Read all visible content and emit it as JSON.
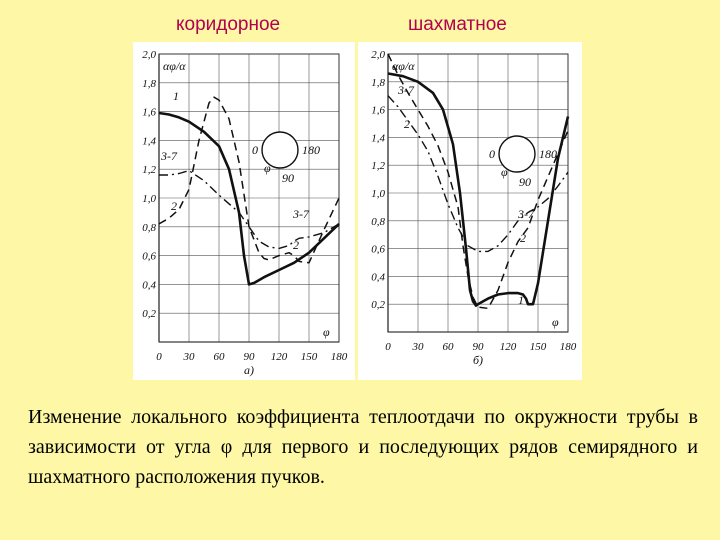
{
  "headings": {
    "left": "коридорное",
    "right": "шахматное"
  },
  "caption": "Изменение локального коэффициента теплоотдачи по окружности трубы в зависимости от угла φ для первого и последующих рядов семирядного и шахматного расположения пучков.",
  "colors": {
    "background": "#fdf7a6",
    "heading": "#b3004f",
    "panel": "#ffffff",
    "ink": "#111111"
  },
  "chart_data": [
    {
      "type": "line",
      "panel_label": "а)",
      "ylabel": "αφ/α",
      "xlabel": "φ",
      "xlim": [
        0,
        180
      ],
      "ylim": [
        0,
        2.0
      ],
      "x_ticks": [
        "0",
        "30",
        "60",
        "90",
        "120",
        "150",
        "180"
      ],
      "y_ticks": [
        "0,2",
        "0,4",
        "0,6",
        "0,8",
        "1,0",
        "1,2",
        "1,4",
        "1,6",
        "1,8",
        "2,0"
      ],
      "grid": true,
      "inset_labels": [
        "0",
        "180",
        "φ",
        "90"
      ],
      "series": [
        {
          "name": "1",
          "style": "solid",
          "x": [
            0,
            10,
            20,
            30,
            45,
            60,
            70,
            80,
            85,
            90,
            95,
            105,
            120,
            135,
            150,
            165,
            180
          ],
          "y": [
            1.59,
            1.58,
            1.56,
            1.53,
            1.46,
            1.36,
            1.2,
            0.9,
            0.6,
            0.4,
            0.41,
            0.45,
            0.5,
            0.55,
            0.62,
            0.72,
            0.82
          ]
        },
        {
          "name": "2",
          "style": "dashed",
          "x": [
            0,
            10,
            20,
            30,
            40,
            50,
            55,
            60,
            70,
            80,
            90,
            100,
            105,
            110,
            120,
            130,
            135,
            140,
            150,
            165,
            180
          ],
          "y": [
            0.82,
            0.86,
            0.92,
            1.06,
            1.4,
            1.66,
            1.7,
            1.68,
            1.55,
            1.25,
            0.8,
            0.62,
            0.58,
            0.57,
            0.6,
            0.62,
            0.6,
            0.56,
            0.55,
            0.78,
            1.0
          ]
        },
        {
          "name": "3-7",
          "style": "dashdot",
          "x": [
            0,
            10,
            20,
            30,
            45,
            60,
            70,
            80,
            90,
            100,
            110,
            120,
            130,
            135,
            140,
            150,
            165,
            180
          ],
          "y": [
            1.16,
            1.16,
            1.17,
            1.19,
            1.12,
            1.02,
            0.96,
            0.9,
            0.8,
            0.7,
            0.66,
            0.65,
            0.67,
            0.7,
            0.72,
            0.73,
            0.76,
            0.82
          ]
        }
      ]
    },
    {
      "type": "line",
      "panel_label": "б)",
      "ylabel": "αφ/α",
      "xlabel": "φ",
      "xlim": [
        0,
        180
      ],
      "ylim": [
        0,
        2.0
      ],
      "x_ticks": [
        "0",
        "30",
        "60",
        "90",
        "120",
        "150",
        "180"
      ],
      "y_ticks": [
        "0,2",
        "0,4",
        "0,6",
        "0,8",
        "1,0",
        "1,2",
        "1,4",
        "1,6",
        "1,8",
        "2,0"
      ],
      "grid": true,
      "inset_labels": [
        "0",
        "180",
        "φ",
        "90"
      ],
      "series": [
        {
          "name": "1",
          "style": "solid",
          "x": [
            0,
            15,
            30,
            45,
            55,
            65,
            72,
            78,
            82,
            85,
            88,
            90,
            95,
            100,
            110,
            120,
            130,
            135,
            138,
            140,
            145,
            150,
            160,
            170,
            180
          ],
          "y": [
            1.86,
            1.84,
            1.8,
            1.72,
            1.6,
            1.35,
            1.0,
            0.6,
            0.3,
            0.22,
            0.19,
            0.2,
            0.22,
            0.24,
            0.27,
            0.28,
            0.28,
            0.27,
            0.24,
            0.2,
            0.2,
            0.35,
            0.8,
            1.25,
            1.55
          ]
        },
        {
          "name": "2",
          "style": "dashed",
          "x": [
            0,
            10,
            20,
            30,
            40,
            50,
            60,
            70,
            75,
            80,
            85,
            90,
            100,
            110,
            120,
            130,
            135,
            140,
            150,
            165,
            180
          ],
          "y": [
            2.0,
            1.85,
            1.72,
            1.6,
            1.48,
            1.34,
            1.15,
            0.9,
            0.62,
            0.4,
            0.25,
            0.18,
            0.17,
            0.3,
            0.5,
            0.65,
            0.7,
            0.75,
            0.95,
            1.2,
            1.45
          ]
        },
        {
          "name": "3-7",
          "style": "dashdot",
          "x": [
            0,
            10,
            20,
            30,
            40,
            50,
            60,
            70,
            80,
            90,
            100,
            110,
            120,
            130,
            140,
            150,
            160,
            170,
            180
          ],
          "y": [
            1.7,
            1.62,
            1.52,
            1.42,
            1.3,
            1.12,
            0.92,
            0.75,
            0.62,
            0.58,
            0.58,
            0.62,
            0.7,
            0.8,
            0.86,
            0.9,
            0.96,
            1.05,
            1.15
          ]
        }
      ]
    }
  ]
}
